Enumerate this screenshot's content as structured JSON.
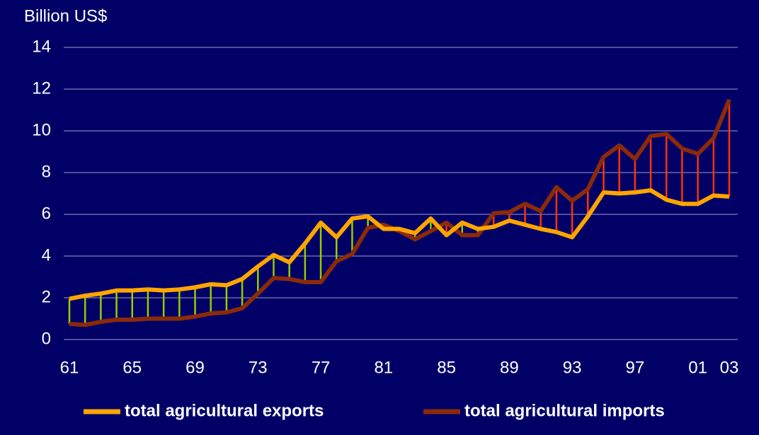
{
  "chart_data": {
    "type": "line",
    "y_label": "Billion US$",
    "categories": [
      "61",
      null,
      null,
      null,
      "65",
      null,
      null,
      null,
      "69",
      null,
      null,
      null,
      "73",
      null,
      null,
      null,
      "77",
      null,
      null,
      null,
      "81",
      null,
      null,
      null,
      "85",
      null,
      null,
      null,
      "89",
      null,
      null,
      null,
      "93",
      null,
      null,
      null,
      "97",
      null,
      null,
      null,
      "01",
      null,
      "03"
    ],
    "series": [
      {
        "name": "total agricultural exports",
        "color": "#ffa500",
        "values": [
          1.95,
          2.1,
          2.2,
          2.35,
          2.35,
          2.4,
          2.35,
          2.4,
          2.5,
          2.65,
          2.6,
          2.9,
          3.5,
          4.05,
          3.7,
          4.6,
          5.6,
          4.9,
          5.8,
          5.9,
          5.3,
          5.3,
          5.1,
          5.8,
          5.0,
          5.6,
          5.3,
          5.4,
          5.7,
          5.5,
          5.3,
          5.15,
          4.9,
          5.9,
          7.05,
          7.0,
          7.05,
          7.15,
          6.7,
          6.5,
          6.5,
          6.9,
          6.85
        ]
      },
      {
        "name": "total agricultural imports",
        "color": "#8b2a0a",
        "values": [
          0.75,
          0.7,
          0.85,
          0.95,
          0.95,
          1.0,
          1.0,
          1.0,
          1.1,
          1.25,
          1.3,
          1.5,
          2.2,
          2.95,
          2.9,
          2.75,
          2.75,
          3.75,
          4.1,
          5.35,
          5.5,
          5.2,
          4.8,
          5.2,
          5.6,
          5.0,
          5.0,
          6.05,
          6.1,
          6.5,
          6.15,
          7.3,
          6.65,
          7.2,
          8.75,
          9.3,
          8.65,
          9.75,
          9.85,
          9.15,
          8.9,
          9.65,
          11.5
        ]
      }
    ],
    "surplus_color": "#99cc00",
    "deficit_color": "#ff3300",
    "ylim": [
      0,
      14
    ],
    "yticks": [
      0,
      2,
      4,
      6,
      8,
      10,
      12,
      14
    ],
    "grid": true,
    "legend": "bottom"
  }
}
